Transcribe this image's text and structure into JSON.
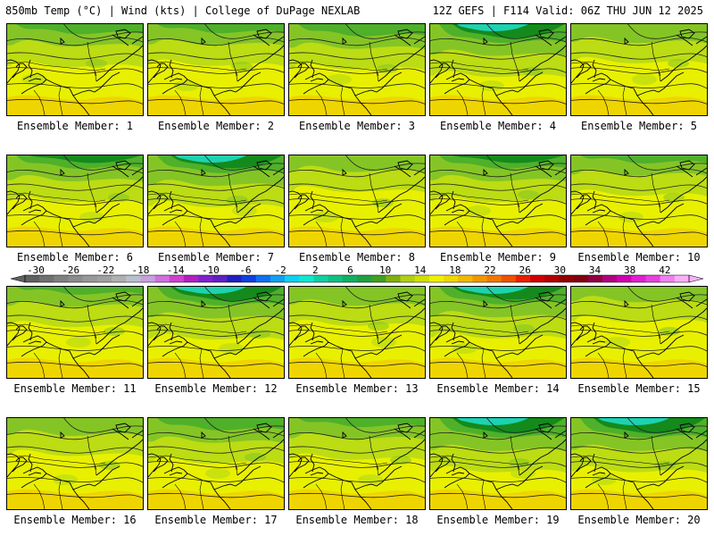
{
  "header": {
    "left": "850mb Temp (°C) | Wind (kts) | College of DuPage NEXLAB",
    "right": "12Z GEFS | F114 Valid: 06Z THU JUN 12 2025"
  },
  "members": [
    {
      "label": "Ensemble Member: 1",
      "cold": 0.45
    },
    {
      "label": "Ensemble Member: 2",
      "cold": 0.4
    },
    {
      "label": "Ensemble Member: 3",
      "cold": 0.55
    },
    {
      "label": "Ensemble Member: 4",
      "cold": 0.85
    },
    {
      "label": "Ensemble Member: 5",
      "cold": 0.3
    },
    {
      "label": "Ensemble Member: 6",
      "cold": 0.6
    },
    {
      "label": "Ensemble Member: 7",
      "cold": 0.8
    },
    {
      "label": "Ensemble Member: 8",
      "cold": 0.2
    },
    {
      "label": "Ensemble Member: 9",
      "cold": 0.6
    },
    {
      "label": "Ensemble Member: 10",
      "cold": 0.35
    },
    {
      "label": "Ensemble Member: 11",
      "cold": 0.35
    },
    {
      "label": "Ensemble Member: 12",
      "cold": 0.85
    },
    {
      "label": "Ensemble Member: 13",
      "cold": 0.3
    },
    {
      "label": "Ensemble Member: 14",
      "cold": 0.8
    },
    {
      "label": "Ensemble Member: 15",
      "cold": 0.15
    },
    {
      "label": "Ensemble Member: 16",
      "cold": 0.25
    },
    {
      "label": "Ensemble Member: 17",
      "cold": 0.55
    },
    {
      "label": "Ensemble Member: 18",
      "cold": 0.4
    },
    {
      "label": "Ensemble Member: 19",
      "cold": 0.9
    },
    {
      "label": "Ensemble Member: 20",
      "cold": 0.9
    }
  ],
  "colorbar": {
    "ticks": [
      "-30",
      "-26",
      "-22",
      "-18",
      "-14",
      "-10",
      "-6",
      "-2",
      "2",
      "6",
      "10",
      "14",
      "18",
      "22",
      "26",
      "30",
      "34",
      "38",
      "42"
    ],
    "colors": [
      "#606060",
      "#707070",
      "#808080",
      "#8c8c8c",
      "#989898",
      "#a0a0a0",
      "#b0b0b0",
      "#b8c0d0",
      "#c8a0e0",
      "#d070e0",
      "#d040d0",
      "#b020c0",
      "#8020d0",
      "#6020c0",
      "#2020c0",
      "#1040e0",
      "#1070f0",
      "#10a0f0",
      "#10d0f0",
      "#10e8d0",
      "#10d0a0",
      "#10c080",
      "#10b060",
      "#20a040",
      "#40a020",
      "#80b010",
      "#b0d010",
      "#d0e000",
      "#f0f000",
      "#f0d800",
      "#f0b800",
      "#f09800",
      "#f07800",
      "#f05000",
      "#e82000",
      "#d00000",
      "#b00000",
      "#900000",
      "#800010",
      "#900040",
      "#b00080",
      "#d000b0",
      "#e020d0",
      "#e840e0",
      "#f080f0",
      "#f8b0f8"
    ]
  },
  "palette": {
    "cold": "#148a1c",
    "coolgreen": "#4fb02a",
    "green": "#84c525",
    "lime": "#bcdc14",
    "yellow": "#e8f000",
    "warm": "#f2cc00",
    "cyan": "#1ed2b0"
  }
}
